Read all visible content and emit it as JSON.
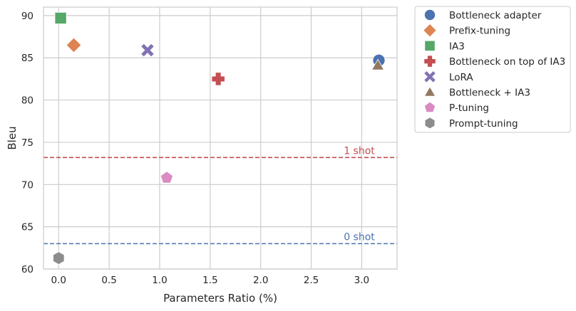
{
  "chart_data": {
    "type": "scatter",
    "xlabel": "Parameters Ratio (%)",
    "ylabel": "Bleu",
    "xlim": [
      -0.15,
      3.35
    ],
    "ylim": [
      60,
      91
    ],
    "xticks": [
      0.0,
      0.5,
      1.0,
      1.5,
      2.0,
      2.5,
      3.0
    ],
    "xtick_labels": [
      "0.0",
      "0.5",
      "1.0",
      "1.5",
      "2.0",
      "2.5",
      "3.0"
    ],
    "yticks": [
      60,
      65,
      70,
      75,
      80,
      85,
      90
    ],
    "ytick_labels": [
      "60",
      "65",
      "70",
      "75",
      "80",
      "85",
      "90"
    ],
    "grid": true,
    "legend_position": "outside-right",
    "series": [
      {
        "name": "Bottleneck adapter",
        "x": 3.17,
        "y": 84.7,
        "marker": "circle",
        "color": "#4c72b0"
      },
      {
        "name": "Prefix-tuning",
        "x": 0.15,
        "y": 86.5,
        "marker": "diamond",
        "color": "#dd8452"
      },
      {
        "name": "IA3",
        "x": 0.02,
        "y": 89.7,
        "marker": "square",
        "color": "#55a868"
      },
      {
        "name": "Bottleneck on top of IA3",
        "x": 1.58,
        "y": 82.5,
        "marker": "plus",
        "color": "#c44e52"
      },
      {
        "name": "LoRA",
        "x": 0.88,
        "y": 85.9,
        "marker": "x",
        "color": "#8172b3"
      },
      {
        "name": "Bottleneck + IA3",
        "x": 3.16,
        "y": 84.1,
        "marker": "triangle",
        "color": "#937860"
      },
      {
        "name": "P-tuning",
        "x": 1.07,
        "y": 70.8,
        "marker": "pentagon",
        "color": "#da8bc3"
      },
      {
        "name": "Prompt-tuning",
        "x": 0.0,
        "y": 61.3,
        "marker": "hexagon",
        "color": "#8c8c8c"
      }
    ],
    "reference_lines": [
      {
        "label": "1 shot",
        "y": 73.2,
        "color": "#c44e52"
      },
      {
        "label": "0 shot",
        "y": 63.0,
        "color": "#4c72b0"
      }
    ]
  }
}
